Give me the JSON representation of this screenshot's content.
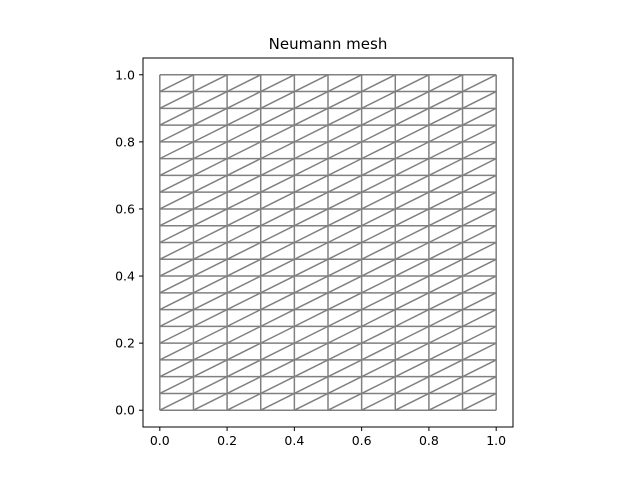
{
  "chart_data": {
    "type": "mesh",
    "title": "Neumann mesh",
    "xlabel": "",
    "ylabel": "",
    "xlim": [
      -0.05,
      1.05
    ],
    "ylim": [
      -0.05,
      1.05
    ],
    "grid": false,
    "mesh": {
      "nx": 10,
      "ny": 20,
      "element": "triangle",
      "diagonal": "lower-left to upper-right",
      "color": "#808080"
    },
    "x_ticks": [
      {
        "value": 0.0,
        "label": "0.0"
      },
      {
        "value": 0.2,
        "label": "0.2"
      },
      {
        "value": 0.4,
        "label": "0.4"
      },
      {
        "value": 0.6,
        "label": "0.6"
      },
      {
        "value": 0.8,
        "label": "0.8"
      },
      {
        "value": 1.0,
        "label": "1.0"
      }
    ],
    "y_ticks": [
      {
        "value": 0.0,
        "label": "0.0"
      },
      {
        "value": 0.2,
        "label": "0.2"
      },
      {
        "value": 0.4,
        "label": "0.4"
      },
      {
        "value": 0.6,
        "label": "0.6"
      },
      {
        "value": 0.8,
        "label": "0.8"
      },
      {
        "value": 1.0,
        "label": "1.0"
      }
    ]
  }
}
